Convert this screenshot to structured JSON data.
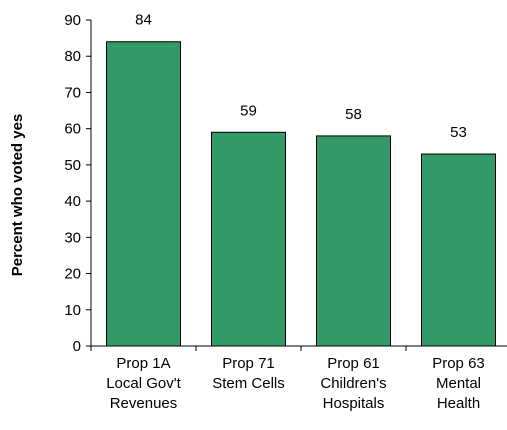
{
  "chart_data": {
    "type": "bar",
    "title": "",
    "xlabel": "",
    "ylabel": "Percent who voted yes",
    "ylim": [
      0,
      90
    ],
    "yticks": [
      0,
      10,
      20,
      30,
      40,
      50,
      60,
      70,
      80,
      90
    ],
    "grid": false,
    "categories": [
      [
        "Prop 1A",
        "Local Gov't",
        "Revenues"
      ],
      [
        "Prop 71",
        "Stem Cells"
      ],
      [
        "Prop 61",
        "Children's",
        "Hospitals"
      ],
      [
        "Prop 63",
        "Mental",
        "Health"
      ]
    ],
    "values": [
      84,
      59,
      58,
      53
    ],
    "data_labels": [
      "84",
      "59",
      "58",
      "53"
    ],
    "bar_color": "#339966"
  }
}
